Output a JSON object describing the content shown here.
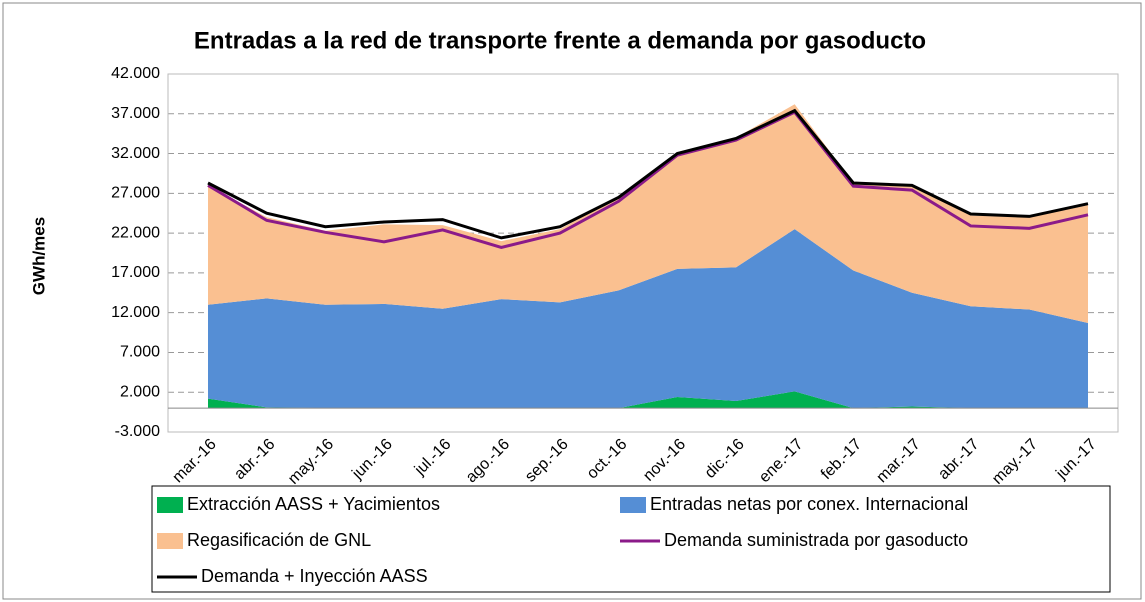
{
  "chart_data": {
    "type": "stacked_area_lines",
    "title": "Entradas a la red de transporte frente a demanda por gasoducto",
    "y_label": "GWh/mes",
    "categories": [
      "mar.-16",
      "abr.-16",
      "may.-16",
      "jun.-16",
      "jul.-16",
      "ago.-16",
      "sep.-16",
      "oct.-16",
      "nov.-16",
      "dic.-16",
      "ene.-17",
      "feb.-17",
      "mar.-17",
      "abr.-17",
      "may.-17",
      "jun.-17"
    ],
    "series": [
      {
        "name": "Extracción AASS + Yacimientos",
        "color": "#00b050",
        "kind": "area",
        "values": [
          1200,
          100,
          0,
          0,
          0,
          0,
          0,
          0,
          1400,
          900,
          2100,
          0,
          200,
          0,
          0,
          0
        ]
      },
      {
        "name": "Entradas netas por conex. Internacional",
        "color": "#558ed5",
        "kind": "area",
        "values": [
          11800,
          13700,
          13000,
          13100,
          12500,
          13700,
          13300,
          14800,
          16100,
          16800,
          20400,
          17300,
          14300,
          12800,
          12400,
          10700
        ]
      },
      {
        "name": "Regasificación de GNL",
        "color": "#fac090",
        "kind": "area",
        "values": [
          15000,
          10200,
          9300,
          10000,
          10500,
          7300,
          9200,
          11800,
          14500,
          16300,
          15700,
          11000,
          13500,
          11400,
          11600,
          14800
        ]
      },
      {
        "name": "Demanda suministrada por gasoducto",
        "color": "#8b1a89",
        "kind": "line",
        "values": [
          28000,
          23600,
          22100,
          20900,
          22400,
          20200,
          22000,
          26000,
          31800,
          33700,
          37200,
          27900,
          27400,
          22900,
          22600,
          24300
        ]
      },
      {
        "name": "Demanda + Inyección AASS",
        "color": "#000000",
        "kind": "line",
        "values": [
          28300,
          24500,
          22800,
          23400,
          23700,
          21400,
          22800,
          26500,
          32000,
          33900,
          37400,
          28300,
          28000,
          24400,
          24100,
          25700
        ]
      }
    ],
    "ylim": [
      -3000,
      42000
    ],
    "yticks": [
      {
        "value": -3000,
        "label": "-3.000"
      },
      {
        "value": 2000,
        "label": "2.000"
      },
      {
        "value": 7000,
        "label": "7.000"
      },
      {
        "value": 12000,
        "label": "12.000"
      },
      {
        "value": 17000,
        "label": "17.000"
      },
      {
        "value": 22000,
        "label": "22.000"
      },
      {
        "value": 27000,
        "label": "27.000"
      },
      {
        "value": 32000,
        "label": "32.000"
      },
      {
        "value": 37000,
        "label": "37.000"
      },
      {
        "value": 42000,
        "label": "42.000"
      }
    ],
    "grid": true,
    "legend": "bottom"
  }
}
